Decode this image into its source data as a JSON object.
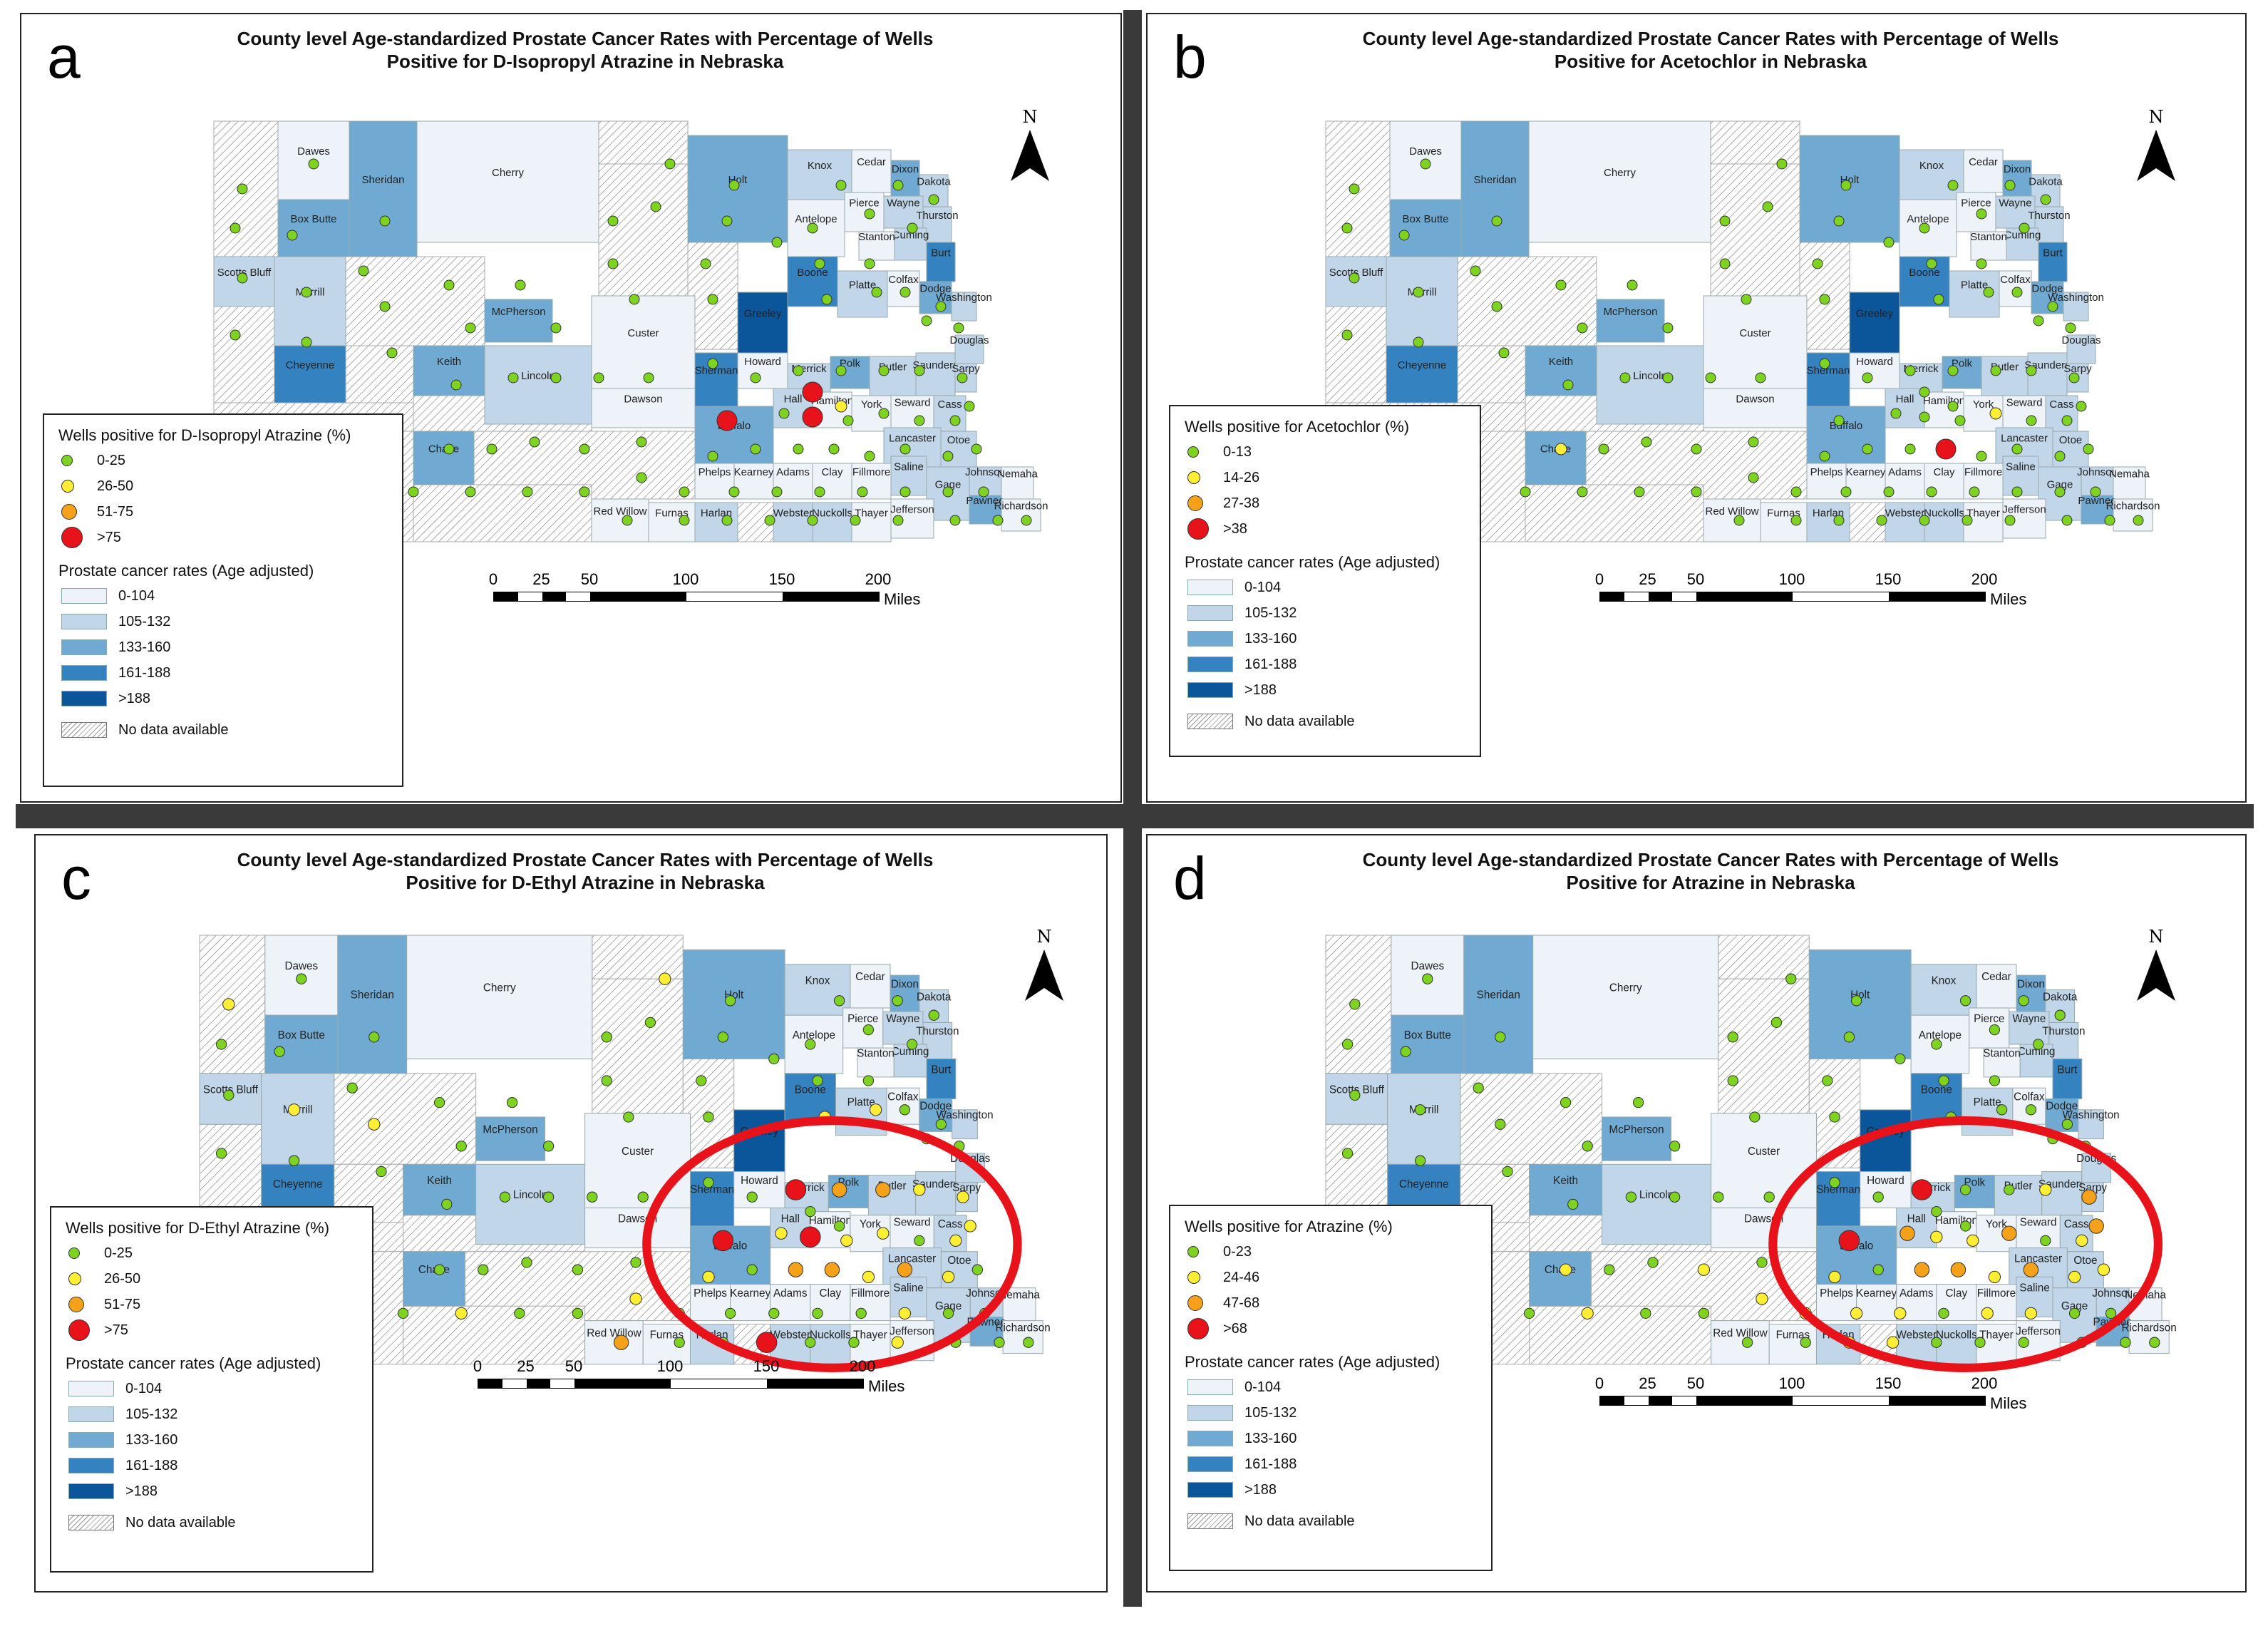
{
  "panels": [
    {
      "label": "a",
      "title_line1": "County level Age-standardized Prostate Cancer Rates with Percentage of Wells",
      "title_line2": "Positive for D-Isopropyl Atrazine in Nebraska",
      "wells_title": "Wells positive for D-Isopropyl Atrazine (%)",
      "wells_classes": [
        "0-25",
        "26-50",
        "51-75",
        ">75"
      ],
      "highlight_circle": false
    },
    {
      "label": "b",
      "title_line1": "County level Age-standardized Prostate Cancer Rates with Percentage of Wells",
      "title_line2": "Positive for Acetochlor in Nebraska",
      "wells_title": "Wells positive for Acetochlor (%)",
      "wells_classes": [
        "0-13",
        "14-26",
        "27-38",
        ">38"
      ],
      "highlight_circle": false
    },
    {
      "label": "c",
      "title_line1": "County level Age-standardized Prostate Cancer Rates with Percentage of Wells",
      "title_line2": "Positive for D-Ethyl Atrazine in Nebraska",
      "wells_title": "Wells positive for D-Ethyl Atrazine (%)",
      "wells_classes": [
        "0-25",
        "26-50",
        "51-75",
        ">75"
      ],
      "highlight_circle": true
    },
    {
      "label": "d",
      "title_line1": "County level Age-standardized Prostate Cancer Rates with Percentage of Wells",
      "title_line2": "Positive for Atrazine in Nebraska",
      "wells_title": "Wells positive for Atrazine (%)",
      "wells_classes": [
        "0-23",
        "24-46",
        "47-68",
        ">68"
      ],
      "highlight_circle": true
    }
  ],
  "cancer_legend": {
    "title": "Prostate cancer rates (Age adjusted)",
    "classes": [
      "0-104",
      "105-132",
      "133-160",
      "161-188",
      ">188"
    ],
    "no_data": "No data available"
  },
  "scale": {
    "labels": [
      "0",
      "25",
      "50",
      "100",
      "150",
      "200"
    ],
    "unit": "Miles"
  },
  "north_label": "N",
  "colors": {
    "class_fills": [
      "#eef3fa",
      "#c1d6e8",
      "#70aad2",
      "#3582c0",
      "#0b559b"
    ],
    "dot_fills": [
      "#7ed321",
      "#ffee33",
      "#f5a21a",
      "#e8121b"
    ],
    "highlight": "#e8121b"
  },
  "counties": [
    {
      "name": "Dawes",
      "cls": 0
    },
    {
      "name": "Sheridan",
      "cls": 2
    },
    {
      "name": "Cherry",
      "cls": 0
    },
    {
      "name": "Holt",
      "cls": 2
    },
    {
      "name": "Knox",
      "cls": 1
    },
    {
      "name": "Cedar",
      "cls": 0
    },
    {
      "name": "Dixon",
      "cls": 2
    },
    {
      "name": "Dakota",
      "cls": 1
    },
    {
      "name": "Box Butte",
      "cls": 2
    },
    {
      "name": "Antelope",
      "cls": 0
    },
    {
      "name": "Pierce",
      "cls": 0
    },
    {
      "name": "Wayne",
      "cls": 1
    },
    {
      "name": "Thurston",
      "cls": 1
    },
    {
      "name": "Cuming",
      "cls": 1
    },
    {
      "name": "Stanton",
      "cls": 0
    },
    {
      "name": "Burt",
      "cls": 3
    },
    {
      "name": "Scotts Bluff",
      "cls": 1
    },
    {
      "name": "Morrill",
      "cls": 1
    },
    {
      "name": "McPherson",
      "cls": 2
    },
    {
      "name": "Greeley",
      "cls": 4
    },
    {
      "name": "Boone",
      "cls": 3
    },
    {
      "name": "Platte",
      "cls": 1
    },
    {
      "name": "Colfax",
      "cls": 0
    },
    {
      "name": "Dodge",
      "cls": 2
    },
    {
      "name": "Washington",
      "cls": 1
    },
    {
      "name": "Cheyenne",
      "cls": 3
    },
    {
      "name": "Keith",
      "cls": 2
    },
    {
      "name": "Lincoln",
      "cls": 1
    },
    {
      "name": "Custer",
      "cls": 0
    },
    {
      "name": "Sherman",
      "cls": 3
    },
    {
      "name": "Howard",
      "cls": 0
    },
    {
      "name": "Merrick",
      "cls": 1
    },
    {
      "name": "Polk",
      "cls": 2
    },
    {
      "name": "Butler",
      "cls": 1
    },
    {
      "name": "Saunders",
      "cls": 1
    },
    {
      "name": "Douglas",
      "cls": 1
    },
    {
      "name": "Sarpy",
      "cls": 1
    },
    {
      "name": "Cass",
      "cls": 1
    },
    {
      "name": "Dawson",
      "cls": 0
    },
    {
      "name": "Buffalo",
      "cls": 2
    },
    {
      "name": "Hall",
      "cls": 1
    },
    {
      "name": "Hamilton",
      "cls": 0
    },
    {
      "name": "York",
      "cls": 0
    },
    {
      "name": "Seward",
      "cls": 0
    },
    {
      "name": "Lancaster",
      "cls": 1
    },
    {
      "name": "Otoe",
      "cls": 1
    },
    {
      "name": "Chase",
      "cls": 2
    },
    {
      "name": "Phelps",
      "cls": 0
    },
    {
      "name": "Kearney",
      "cls": 0
    },
    {
      "name": "Adams",
      "cls": 0
    },
    {
      "name": "Clay",
      "cls": 0
    },
    {
      "name": "Fillmore",
      "cls": 0
    },
    {
      "name": "Saline",
      "cls": 1
    },
    {
      "name": "Gage",
      "cls": 1
    },
    {
      "name": "Johnson",
      "cls": 1
    },
    {
      "name": "Nemaha",
      "cls": 0
    },
    {
      "name": "Red Willow",
      "cls": 0
    },
    {
      "name": "Furnas",
      "cls": 0
    },
    {
      "name": "Harlan",
      "cls": 1
    },
    {
      "name": "Webster",
      "cls": 1
    },
    {
      "name": "Nuckolls",
      "cls": 1
    },
    {
      "name": "Thayer",
      "cls": 0
    },
    {
      "name": "Jefferson",
      "cls": 0
    },
    {
      "name": "Pawnee",
      "cls": 2
    },
    {
      "name": "Richardson",
      "cls": 0
    }
  ]
}
